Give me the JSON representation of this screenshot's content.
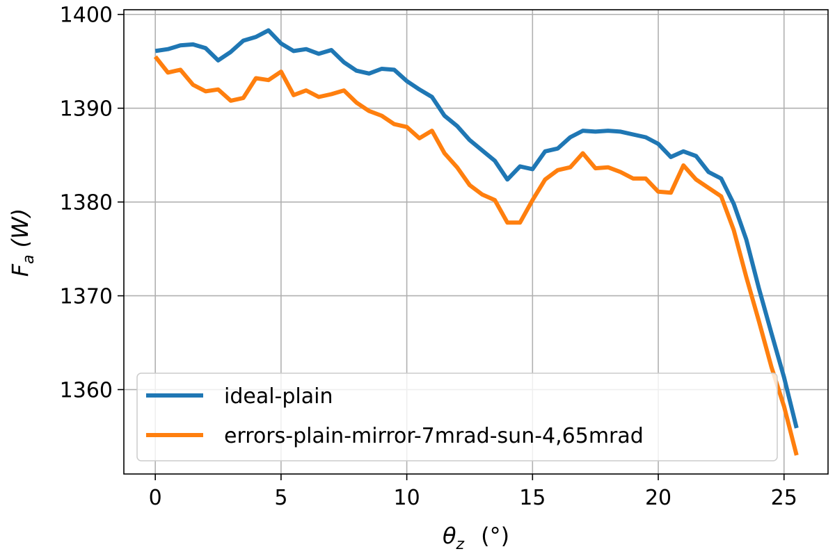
{
  "chart_data": {
    "type": "line",
    "title": "",
    "xlabel_main": "θ",
    "xlabel_sub": "z",
    "xlabel_unit": "(°)",
    "ylabel_main": "F",
    "ylabel_sub": "a",
    "ylabel_unit": "(W)",
    "xlim": [
      -1.25,
      26.75
    ],
    "ylim": [
      1351,
      1400.5
    ],
    "xticks": [
      0,
      5,
      10,
      15,
      20,
      25
    ],
    "xtick_labels": [
      "0",
      "5",
      "10",
      "15",
      "20",
      "25"
    ],
    "yticks": [
      1360,
      1370,
      1380,
      1390,
      1400
    ],
    "ytick_labels": [
      "1360",
      "1370",
      "1380",
      "1390",
      "1400"
    ],
    "grid": true,
    "legend_position": "lower-left",
    "x": [
      0,
      0.5,
      1,
      1.5,
      2,
      2.5,
      3,
      3.5,
      4,
      4.5,
      5,
      5.5,
      6,
      6.5,
      7,
      7.5,
      8,
      8.5,
      9,
      9.5,
      10,
      10.5,
      11,
      11.5,
      12,
      12.5,
      13,
      13.5,
      14,
      14.5,
      15,
      15.5,
      16,
      16.5,
      17,
      17.5,
      18,
      18.5,
      19,
      19.5,
      20,
      20.5,
      21,
      21.5,
      22,
      22.5,
      23,
      23.5,
      24,
      24.5,
      25,
      25.5
    ],
    "series": [
      {
        "name": "ideal-plain",
        "color": "#1f77b4",
        "values": [
          1396.1,
          1396.3,
          1396.7,
          1396.8,
          1396.4,
          1395.1,
          1396.0,
          1397.2,
          1397.6,
          1398.3,
          1396.9,
          1396.1,
          1396.3,
          1395.8,
          1396.2,
          1394.9,
          1394.0,
          1393.7,
          1394.2,
          1394.1,
          1392.9,
          1392.0,
          1391.2,
          1389.2,
          1388.1,
          1386.6,
          1385.5,
          1384.4,
          1382.4,
          1383.8,
          1383.5,
          1385.4,
          1385.7,
          1386.9,
          1387.6,
          1387.5,
          1387.6,
          1387.5,
          1387.2,
          1386.9,
          1386.2,
          1384.8,
          1385.4,
          1384.9,
          1383.2,
          1382.5,
          1379.8,
          1376.0,
          1370.8,
          1366.0,
          1361.3,
          1355.9
        ]
      },
      {
        "name": "errors-plain-mirror-7mrad-sun-4,65mrad",
        "color": "#ff7f0e",
        "values": [
          1395.5,
          1393.8,
          1394.1,
          1392.5,
          1391.8,
          1392.0,
          1390.8,
          1391.1,
          1393.2,
          1393.0,
          1393.9,
          1391.4,
          1391.9,
          1391.2,
          1391.5,
          1391.9,
          1390.6,
          1389.7,
          1389.2,
          1388.3,
          1388.0,
          1386.8,
          1387.6,
          1385.2,
          1383.7,
          1381.8,
          1380.8,
          1380.2,
          1377.8,
          1377.8,
          1380.2,
          1382.4,
          1383.4,
          1383.7,
          1385.2,
          1383.6,
          1383.7,
          1383.2,
          1382.5,
          1382.5,
          1381.1,
          1381.0,
          1383.9,
          1382.4,
          1381.5,
          1380.6,
          1377.0,
          1372.0,
          1367.3,
          1362.4,
          1358.2,
          1353.0
        ]
      }
    ]
  }
}
